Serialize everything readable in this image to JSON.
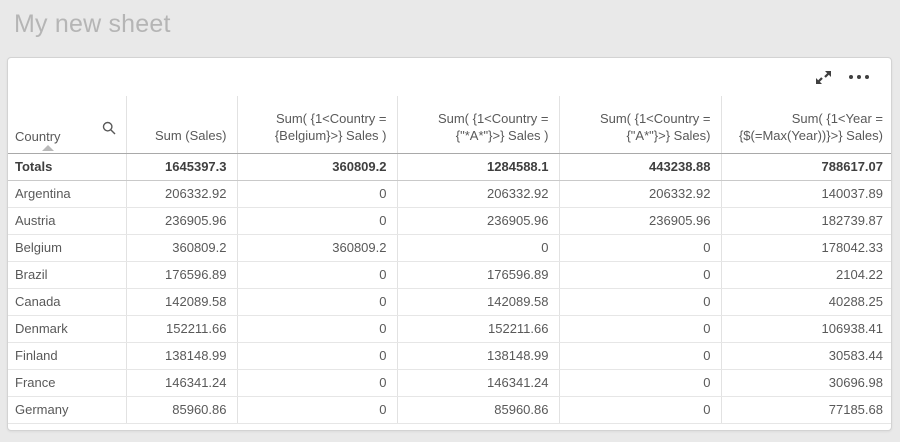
{
  "page": {
    "title": "My new sheet"
  },
  "toolbar": {
    "icons": {
      "expand": "diagonal-double-arrow (enter fullscreen)",
      "more": "three-dot ellipsis menu"
    }
  },
  "table": {
    "columns": [
      {
        "label": "Country",
        "align": "left",
        "sorted": "ascending",
        "has_search": true
      },
      {
        "label": "Sum (Sales)",
        "align": "right"
      },
      {
        "label": "Sum( {1<Country =\n{Belgium}>} Sales )",
        "align": "right"
      },
      {
        "label": "Sum( {1<Country =\n{\"*A*\"}>} Sales )",
        "align": "right"
      },
      {
        "label": "Sum( {1<Country =\n{\"A*\"}>} Sales)",
        "align": "right"
      },
      {
        "label": "Sum( {1<Year =\n{$(=Max(Year))}>} Sales)",
        "align": "right"
      }
    ],
    "totals": {
      "cells": [
        "Totals",
        "1645397.3",
        "360809.2",
        "1284588.1",
        "443238.88",
        "788617.07"
      ]
    },
    "rows": [
      {
        "cells": [
          "Argentina",
          "206332.92",
          "0",
          "206332.92",
          "206332.92",
          "140037.89"
        ]
      },
      {
        "cells": [
          "Austria",
          "236905.96",
          "0",
          "236905.96",
          "236905.96",
          "182739.87"
        ]
      },
      {
        "cells": [
          "Belgium",
          "360809.2",
          "360809.2",
          "0",
          "0",
          "178042.33"
        ]
      },
      {
        "cells": [
          "Brazil",
          "176596.89",
          "0",
          "176596.89",
          "0",
          "2104.22"
        ]
      },
      {
        "cells": [
          "Canada",
          "142089.58",
          "0",
          "142089.58",
          "0",
          "40288.25"
        ]
      },
      {
        "cells": [
          "Denmark",
          "152211.66",
          "0",
          "152211.66",
          "0",
          "106938.41"
        ]
      },
      {
        "cells": [
          "Finland",
          "138148.99",
          "0",
          "138148.99",
          "0",
          "30583.44"
        ]
      },
      {
        "cells": [
          "France",
          "146341.24",
          "0",
          "146341.24",
          "0",
          "30696.98"
        ]
      },
      {
        "cells": [
          "Germany",
          "85960.86",
          "0",
          "85960.86",
          "0",
          "77185.68"
        ]
      }
    ]
  },
  "colors": {
    "page_background": "#e9e9e9",
    "card_background": "#ffffff",
    "card_border": "#d3d3d3",
    "title_text": "#b5b5b5",
    "body_text": "#595959",
    "totals_text": "#3f3f3f",
    "gridline": "#e6e6e6",
    "header_rule": "#a9a9a9",
    "icon": "#404040"
  }
}
